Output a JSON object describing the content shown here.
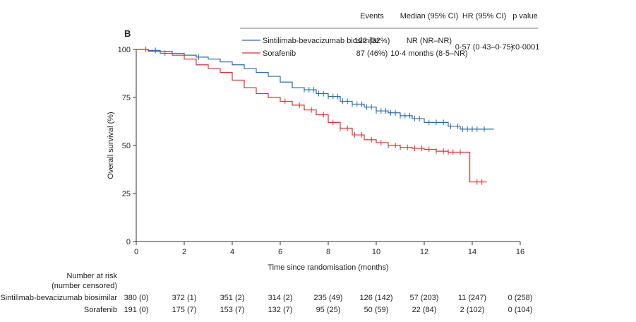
{
  "chart_data": {
    "type": "line",
    "panel_label": "B",
    "xlabel": "Time since randomisation (months)",
    "ylabel": "Overall survival (%)",
    "xlim": [
      0,
      16
    ],
    "ylim": [
      0,
      100
    ],
    "x_ticks": [
      0,
      2,
      4,
      6,
      8,
      10,
      12,
      14,
      16
    ],
    "y_ticks": [
      0,
      25,
      50,
      75,
      100
    ],
    "series": [
      {
        "name": "Sintilimab-bevacizumab biosimilar",
        "color": "#2a6cb0",
        "x": [
          0,
          0.5,
          1.0,
          1.5,
          2.0,
          2.5,
          3.0,
          3.5,
          4.0,
          4.5,
          5.0,
          5.5,
          6.0,
          6.5,
          7.0,
          7.5,
          8.0,
          8.5,
          9.0,
          9.5,
          10.0,
          10.5,
          11.0,
          11.5,
          12.0,
          12.5,
          13.0,
          13.5,
          14.0,
          14.5,
          14.9
        ],
        "y": [
          100,
          99.5,
          99,
          98,
          97,
          96,
          95,
          93.5,
          92,
          90,
          88,
          86,
          83,
          80,
          79,
          77,
          75.5,
          73,
          71.5,
          70,
          68,
          67,
          65.5,
          64,
          62,
          62,
          60,
          58.5,
          58.5,
          58.5,
          58.5
        ],
        "censor_x": [
          0.8,
          2.6,
          7.0,
          7.2,
          7.4,
          7.6,
          7.8,
          8.0,
          8.2,
          8.4,
          8.6,
          8.8,
          9.0,
          9.2,
          9.4,
          9.6,
          9.8,
          10.0,
          10.2,
          10.4,
          10.6,
          10.8,
          11.0,
          11.2,
          11.4,
          11.6,
          11.8,
          12.2,
          12.5,
          12.8,
          13.1,
          13.4,
          13.6,
          13.8,
          14.0,
          14.2,
          14.5
        ]
      },
      {
        "name": "Sorafenib",
        "color": "#e0302c",
        "x": [
          0,
          0.5,
          1.0,
          1.5,
          2.0,
          2.5,
          3.0,
          3.5,
          4.0,
          4.5,
          5.0,
          5.5,
          6.0,
          6.5,
          7.0,
          7.5,
          8.0,
          8.5,
          9.0,
          9.5,
          10.0,
          10.5,
          11.0,
          11.5,
          12.0,
          12.5,
          13.0,
          13.5,
          13.9,
          13.9,
          14.6
        ],
        "y": [
          100,
          99,
          98,
          97,
          95,
          92,
          90,
          88,
          84,
          80,
          77,
          75,
          73,
          71,
          68.5,
          66,
          62,
          59,
          55.5,
          53,
          51.5,
          50,
          49,
          48.5,
          48,
          47,
          46.5,
          46.5,
          46.5,
          31,
          31
        ],
        "censor_x": [
          0.4,
          1.2,
          6.2,
          6.8,
          7.3,
          7.8,
          8.2,
          8.5,
          8.8,
          9.1,
          9.4,
          9.8,
          10.2,
          10.5,
          10.8,
          11.0,
          11.3,
          11.6,
          11.9,
          12.2,
          12.5,
          12.8,
          13.0,
          13.2,
          13.5,
          14.2,
          14.4
        ]
      }
    ]
  },
  "legend": {
    "headers": {
      "events": "Events",
      "median": "Median (95% CI)",
      "hr": "HR (95% CI)",
      "p": "p value"
    },
    "rows": [
      {
        "name": "Sintilimab-bevacizumab biosimilar",
        "events": "122 (32%)",
        "median": "NR (NR–NR)"
      },
      {
        "name": "Sorafenib",
        "events": "87 (46%)",
        "median": "10·4 months (8·5–NR)"
      }
    ],
    "hr": "0·57 (0·43–0·75)",
    "p": "<0·0001"
  },
  "risk_table": {
    "title_line1": "Number at risk",
    "title_line2": "(number censored)",
    "times": [
      0,
      2,
      4,
      6,
      8,
      10,
      12,
      14,
      16
    ],
    "rows": [
      {
        "label": "Sintilimab-bevacizumab biosimilar",
        "values": [
          "380 (0)",
          "372 (1)",
          "351 (2)",
          "314 (2)",
          "235 (49)",
          "126 (142)",
          "57 (203)",
          "11 (247)",
          "0 (258)"
        ]
      },
      {
        "label": "Sorafenib",
        "values": [
          "191 (0)",
          "175 (7)",
          "153 (7)",
          "132 (7)",
          "95 (25)",
          "50 (59)",
          "22 (84)",
          "2 (102)",
          "0 (104)"
        ]
      }
    ]
  }
}
